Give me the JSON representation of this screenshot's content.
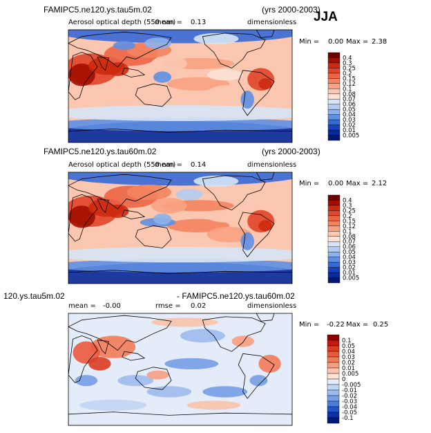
{
  "figure": {
    "season": "JJA",
    "colors": {
      "ocean_base": "#f6b8a0",
      "land_line": "#000000"
    }
  },
  "chart_data": [
    {
      "type": "heatmap",
      "case": "FAMIPC5.ne120.ys.tau5m.02",
      "years": "(yrs 2000-2003)",
      "variable": "Aerosol optical depth (550 nm)",
      "mean_label": "mean =",
      "mean": "0.13",
      "units": "dimensionless",
      "min_label": "Min =",
      "min": "0.00",
      "max_label": "Max =",
      "max": "2.38",
      "levels": [
        "0.4",
        "0.3",
        "0.25",
        "0.2",
        "0.15",
        "0.12",
        "0.1",
        "0.08",
        "0.07",
        "0.06",
        "0.05",
        "0.04",
        "0.03",
        "0.02",
        "0.01",
        "0.005"
      ],
      "colors": [
        "#6b0000",
        "#a30d00",
        "#cc2a0f",
        "#e0442a",
        "#ec6446",
        "#f3835f",
        "#f8a283",
        "#fcc7b0",
        "#fde2d6",
        "#d6e4f6",
        "#b3ccf0",
        "#8db1ea",
        "#5f8fe3",
        "#3669d8",
        "#1640c4",
        "#052a9c",
        "#011870"
      ]
    },
    {
      "type": "heatmap",
      "case": "FAMIPC5.ne120.ys.tau60m.02",
      "years": "(yrs 2000-2003)",
      "variable": "Aerosol optical depth (550 nm)",
      "mean_label": "mean =",
      "mean": "0.14",
      "units": "dimensionless",
      "min_label": "Min =",
      "min": "0.00",
      "max_label": "Max =",
      "max": "2.12",
      "levels": [
        "0.4",
        "0.3",
        "0.25",
        "0.2",
        "0.15",
        "0.12",
        "0.1",
        "0.08",
        "0.07",
        "0.06",
        "0.05",
        "0.04",
        "0.03",
        "0.02",
        "0.01",
        "0.005"
      ],
      "colors": [
        "#6b0000",
        "#a30d00",
        "#cc2a0f",
        "#e0442a",
        "#ec6446",
        "#f3835f",
        "#f8a283",
        "#fcc7b0",
        "#fde2d6",
        "#d6e4f6",
        "#b3ccf0",
        "#8db1ea",
        "#5f8fe3",
        "#3669d8",
        "#1640c4",
        "#052a9c",
        "#011870"
      ]
    },
    {
      "type": "heatmap",
      "case": "120.ys.tau5m.02",
      "case_right": "- FAMIPC5.ne120.ys.tau60m.02",
      "mean_label": "mean =",
      "mean": "-0.00",
      "rmse_label": "rmse =",
      "rmse": "0.02",
      "units": "dimensionless",
      "min_label": "Min =",
      "min": "-0.22",
      "max_label": "Max =",
      "max": "0.25",
      "levels": [
        "0.1",
        "0.05",
        "0.04",
        "0.03",
        "0.02",
        "0.01",
        "0.005",
        "0",
        "-0.005",
        "-0.01",
        "-0.02",
        "-0.03",
        "-0.04",
        "-0.05",
        "-0.1"
      ],
      "colors": [
        "#8e0000",
        "#c41a0b",
        "#dc3c22",
        "#ea5a3c",
        "#f27b58",
        "#f69f80",
        "#fac3aa",
        "#fde3d6",
        "#e3ecf8",
        "#c2d5f2",
        "#9dbbec",
        "#769fe5",
        "#4c7ddb",
        "#2553c9",
        "#0a31a6",
        "#021a7a"
      ]
    }
  ]
}
